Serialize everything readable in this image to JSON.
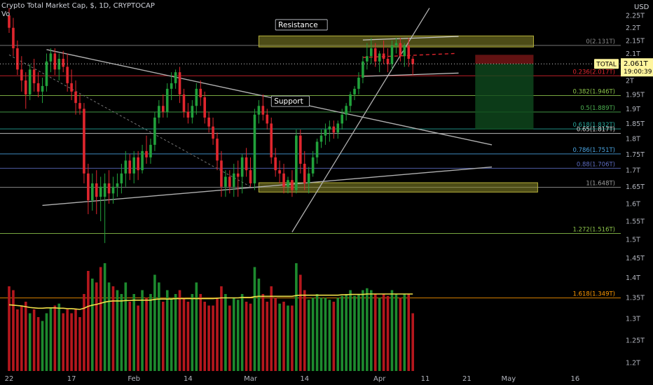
{
  "header": {
    "title": "Crypto Total Market Cap, $, 1D, CRYPTOCAP",
    "sub": "Vo"
  },
  "currency_label": "USD",
  "colors": {
    "up": "#21a13b",
    "down": "#e0262e",
    "up_vol": "#1d8a2e",
    "down_vol": "#b5171d",
    "ma_vol": "#f0e04a",
    "zone": "#8c8a2a",
    "trend": "#9e9e9e"
  },
  "chart_data": {
    "type": "candlestick",
    "title": "Crypto Total Market Cap, $, 1D, CRYPTOCAP",
    "y_axis": {
      "unit": "T USD",
      "scale": "log",
      "range": [
        1.19,
        2.28
      ],
      "ticks": [
        "2.25T",
        "2.2T",
        "2.15T",
        "2.1T",
        "2.05T",
        "2T",
        "1.95T",
        "1.9T",
        "1.85T",
        "1.8T",
        "1.75T",
        "1.7T",
        "1.65T",
        "1.6T",
        "1.55T",
        "1.5T",
        "1.45T",
        "1.4T",
        "1.35T",
        "1.3T",
        "1.25T",
        "1.2T"
      ],
      "tick_values": [
        2.25,
        2.2,
        2.15,
        2.1,
        2.05,
        2.0,
        1.95,
        1.9,
        1.85,
        1.8,
        1.75,
        1.7,
        1.65,
        1.6,
        1.55,
        1.5,
        1.45,
        1.4,
        1.35,
        1.3,
        1.25,
        1.2
      ]
    },
    "x_axis": {
      "labels": [
        "22",
        "17",
        "Feb",
        "14",
        "Mar",
        "14",
        "Apr",
        "11",
        "21",
        "May",
        "16"
      ],
      "label_days": [
        0,
        15,
        30,
        43,
        58,
        71,
        89,
        100,
        110,
        120,
        136
      ]
    },
    "price": {
      "last": "2.061T",
      "label": "TOTAL",
      "countdown": "19:00:39",
      "last_value": 2.061
    },
    "fib_levels": [
      {
        "label": "0(2.131T)",
        "value": 2.131,
        "color": "#8a8a8a"
      },
      {
        "label": "0.236(2.017T)",
        "value": 2.017,
        "color": "#e0262e"
      },
      {
        "label": "0.382(1.946T)",
        "value": 1.946,
        "color": "#8bc34a"
      },
      {
        "label": "0.5(1.889T)",
        "value": 1.889,
        "color": "#4caf50"
      },
      {
        "label": "0.618(1.832T)",
        "value": 1.832,
        "color": "#26a69a"
      },
      {
        "label": "0.65(1.817T)",
        "value": 1.817,
        "color": "#d8d8d8"
      },
      {
        "label": "0.786(1.751T)",
        "value": 1.751,
        "color": "#4aa3df"
      },
      {
        "label": "0.88(1.706T)",
        "value": 1.706,
        "color": "#5c6bc0"
      },
      {
        "label": "1(1.648T)",
        "value": 1.648,
        "color": "#9e9e9e"
      },
      {
        "label": "1.272(1.516T)",
        "value": 1.516,
        "color": "#8bc34a"
      },
      {
        "label": "1.618(1.349T)",
        "value": 1.349,
        "color": "#ff9800"
      }
    ],
    "annotations": [
      {
        "text": "Resistance",
        "x": 64,
        "y": 2.205
      },
      {
        "text": "Support",
        "x": 63,
        "y": 1.92
      }
    ],
    "zones": [
      {
        "name": "resistance",
        "x1": 60,
        "x2": 126,
        "y1": 2.125,
        "y2": 2.168
      },
      {
        "name": "support",
        "x1": 60,
        "x2": 127,
        "y1": 1.634,
        "y2": 1.662
      }
    ],
    "position": {
      "entry": 2.061,
      "stop": 2.095,
      "target": 1.83,
      "x1": 112,
      "x2": 126
    },
    "candles": [
      [
        2.25,
        2.28,
        2.18,
        2.2
      ],
      [
        2.2,
        2.24,
        2.09,
        2.12
      ],
      [
        2.12,
        2.15,
        2.02,
        2.04
      ],
      [
        2.04,
        2.09,
        1.96,
        2.0
      ],
      [
        2.0,
        2.03,
        1.9,
        1.95
      ],
      [
        1.95,
        2.06,
        1.93,
        2.04
      ],
      [
        2.04,
        2.08,
        1.96,
        1.99
      ],
      [
        1.99,
        2.03,
        1.94,
        1.96
      ],
      [
        1.96,
        2.01,
        1.92,
        1.98
      ],
      [
        1.98,
        2.1,
        1.96,
        2.07
      ],
      [
        2.07,
        2.12,
        2.03,
        2.1
      ],
      [
        2.1,
        2.12,
        2.02,
        2.04
      ],
      [
        2.04,
        2.1,
        2.0,
        2.08
      ],
      [
        2.08,
        2.11,
        2.03,
        2.05
      ],
      [
        2.05,
        2.1,
        1.96,
        1.99
      ],
      [
        1.99,
        2.04,
        1.93,
        1.96
      ],
      [
        1.96,
        2.0,
        1.88,
        1.92
      ],
      [
        1.92,
        1.95,
        1.88,
        1.9
      ],
      [
        1.9,
        1.92,
        1.66,
        1.69
      ],
      [
        1.69,
        1.72,
        1.57,
        1.61
      ],
      [
        1.61,
        1.69,
        1.58,
        1.66
      ],
      [
        1.66,
        1.7,
        1.57,
        1.62
      ],
      [
        1.62,
        1.68,
        1.55,
        1.65
      ],
      [
        1.62,
        1.69,
        1.49,
        1.66
      ],
      [
        1.66,
        1.7,
        1.6,
        1.63
      ],
      [
        1.63,
        1.68,
        1.6,
        1.65
      ],
      [
        1.65,
        1.69,
        1.62,
        1.66
      ],
      [
        1.66,
        1.72,
        1.63,
        1.69
      ],
      [
        1.69,
        1.76,
        1.65,
        1.73
      ],
      [
        1.73,
        1.75,
        1.67,
        1.69
      ],
      [
        1.69,
        1.76,
        1.66,
        1.74
      ],
      [
        1.74,
        1.76,
        1.67,
        1.7
      ],
      [
        1.7,
        1.78,
        1.69,
        1.76
      ],
      [
        1.76,
        1.81,
        1.72,
        1.74
      ],
      [
        1.74,
        1.8,
        1.72,
        1.78
      ],
      [
        1.78,
        1.89,
        1.76,
        1.87
      ],
      [
        1.87,
        1.93,
        1.85,
        1.91
      ],
      [
        1.91,
        1.95,
        1.87,
        1.89
      ],
      [
        1.89,
        1.99,
        1.87,
        1.97
      ],
      [
        1.97,
        2.03,
        1.93,
        1.99
      ],
      [
        1.99,
        2.04,
        1.97,
        2.03
      ],
      [
        2.03,
        2.05,
        1.92,
        1.95
      ],
      [
        1.95,
        1.97,
        1.87,
        1.89
      ],
      [
        1.89,
        1.92,
        1.85,
        1.87
      ],
      [
        1.87,
        1.93,
        1.85,
        1.91
      ],
      [
        1.91,
        1.99,
        1.88,
        1.97
      ],
      [
        1.97,
        2.0,
        1.91,
        1.94
      ],
      [
        1.94,
        1.96,
        1.85,
        1.87
      ],
      [
        1.87,
        1.89,
        1.82,
        1.84
      ],
      [
        1.84,
        1.87,
        1.78,
        1.8
      ],
      [
        1.8,
        1.82,
        1.7,
        1.73
      ],
      [
        1.73,
        1.76,
        1.62,
        1.65
      ],
      [
        1.65,
        1.7,
        1.62,
        1.68
      ],
      [
        1.68,
        1.7,
        1.63,
        1.65
      ],
      [
        1.65,
        1.72,
        1.62,
        1.69
      ],
      [
        1.69,
        1.73,
        1.62,
        1.68
      ],
      [
        1.68,
        1.75,
        1.63,
        1.74
      ],
      [
        1.74,
        1.77,
        1.68,
        1.7
      ],
      [
        1.7,
        1.74,
        1.65,
        1.66
      ],
      [
        1.66,
        1.9,
        1.64,
        1.88
      ],
      [
        1.88,
        1.93,
        1.85,
        1.91
      ],
      [
        1.91,
        1.95,
        1.86,
        1.88
      ],
      [
        1.88,
        1.9,
        1.83,
        1.85
      ],
      [
        1.85,
        1.87,
        1.72,
        1.74
      ],
      [
        1.74,
        1.77,
        1.68,
        1.7
      ],
      [
        1.7,
        1.73,
        1.66,
        1.69
      ],
      [
        1.69,
        1.72,
        1.63,
        1.65
      ],
      [
        1.65,
        1.68,
        1.63,
        1.67
      ],
      [
        1.67,
        1.7,
        1.62,
        1.64
      ],
      [
        1.64,
        1.83,
        1.63,
        1.81
      ],
      [
        1.81,
        1.83,
        1.69,
        1.72
      ],
      [
        1.72,
        1.76,
        1.64,
        1.66
      ],
      [
        1.66,
        1.71,
        1.63,
        1.69
      ],
      [
        1.69,
        1.76,
        1.68,
        1.74
      ],
      [
        1.74,
        1.8,
        1.72,
        1.79
      ],
      [
        1.79,
        1.83,
        1.77,
        1.81
      ],
      [
        1.81,
        1.85,
        1.78,
        1.83
      ],
      [
        1.83,
        1.86,
        1.79,
        1.84
      ],
      [
        1.84,
        1.86,
        1.8,
        1.82
      ],
      [
        1.82,
        1.86,
        1.8,
        1.85
      ],
      [
        1.85,
        1.9,
        1.83,
        1.88
      ],
      [
        1.88,
        1.92,
        1.86,
        1.91
      ],
      [
        1.91,
        1.96,
        1.89,
        1.95
      ],
      [
        1.95,
        1.98,
        1.93,
        1.97
      ],
      [
        1.97,
        2.03,
        1.95,
        2.01
      ],
      [
        2.01,
        2.09,
        1.99,
        2.07
      ],
      [
        2.07,
        2.14,
        2.04,
        2.09
      ],
      [
        2.09,
        2.16,
        2.06,
        2.12
      ],
      [
        2.12,
        2.14,
        2.05,
        2.07
      ],
      [
        2.07,
        2.11,
        2.03,
        2.1
      ],
      [
        2.1,
        2.15,
        2.06,
        2.08
      ],
      [
        2.08,
        2.12,
        2.03,
        2.06
      ],
      [
        2.06,
        2.15,
        2.04,
        2.13
      ],
      [
        2.13,
        2.16,
        2.1,
        2.14
      ],
      [
        2.14,
        2.16,
        2.07,
        2.09
      ],
      [
        2.09,
        2.14,
        2.05,
        2.13
      ],
      [
        2.13,
        2.16,
        2.05,
        2.08
      ],
      [
        2.08,
        2.09,
        2.02,
        2.06
      ]
    ],
    "volume": [
      [
        220,
        0
      ],
      [
        210,
        0
      ],
      [
        160,
        0
      ],
      [
        170,
        0
      ],
      [
        180,
        0
      ],
      [
        150,
        1
      ],
      [
        160,
        0
      ],
      [
        140,
        0
      ],
      [
        130,
        1
      ],
      [
        150,
        1
      ],
      [
        165,
        1
      ],
      [
        170,
        0
      ],
      [
        175,
        1
      ],
      [
        150,
        0
      ],
      [
        160,
        0
      ],
      [
        150,
        0
      ],
      [
        160,
        0
      ],
      [
        140,
        0
      ],
      [
        200,
        0
      ],
      [
        260,
        0
      ],
      [
        240,
        1
      ],
      [
        230,
        0
      ],
      [
        270,
        0
      ],
      [
        280,
        1
      ],
      [
        230,
        1
      ],
      [
        220,
        0
      ],
      [
        210,
        1
      ],
      [
        200,
        1
      ],
      [
        230,
        1
      ],
      [
        180,
        0
      ],
      [
        200,
        1
      ],
      [
        170,
        0
      ],
      [
        210,
        1
      ],
      [
        190,
        0
      ],
      [
        200,
        1
      ],
      [
        250,
        1
      ],
      [
        230,
        1
      ],
      [
        180,
        0
      ],
      [
        210,
        1
      ],
      [
        190,
        1
      ],
      [
        200,
        1
      ],
      [
        210,
        0
      ],
      [
        190,
        0
      ],
      [
        180,
        0
      ],
      [
        200,
        1
      ],
      [
        230,
        1
      ],
      [
        200,
        0
      ],
      [
        180,
        0
      ],
      [
        170,
        0
      ],
      [
        170,
        0
      ],
      [
        190,
        0
      ],
      [
        220,
        0
      ],
      [
        200,
        1
      ],
      [
        170,
        0
      ],
      [
        190,
        1
      ],
      [
        185,
        1
      ],
      [
        200,
        1
      ],
      [
        180,
        0
      ],
      [
        175,
        0
      ],
      [
        270,
        1
      ],
      [
        240,
        1
      ],
      [
        200,
        0
      ],
      [
        180,
        0
      ],
      [
        220,
        0
      ],
      [
        190,
        0
      ],
      [
        175,
        1
      ],
      [
        180,
        0
      ],
      [
        170,
        1
      ],
      [
        170,
        0
      ],
      [
        280,
        1
      ],
      [
        250,
        0
      ],
      [
        210,
        0
      ],
      [
        185,
        1
      ],
      [
        190,
        1
      ],
      [
        200,
        1
      ],
      [
        190,
        1
      ],
      [
        190,
        1
      ],
      [
        185,
        1
      ],
      [
        180,
        0
      ],
      [
        190,
        1
      ],
      [
        195,
        1
      ],
      [
        200,
        1
      ],
      [
        210,
        1
      ],
      [
        195,
        1
      ],
      [
        200,
        1
      ],
      [
        210,
        1
      ],
      [
        215,
        1
      ],
      [
        210,
        1
      ],
      [
        200,
        0
      ],
      [
        190,
        1
      ],
      [
        200,
        0
      ],
      [
        195,
        0
      ],
      [
        210,
        1
      ],
      [
        200,
        1
      ],
      [
        190,
        0
      ],
      [
        200,
        1
      ],
      [
        200,
        0
      ],
      [
        150,
        0
      ]
    ],
    "volume_ma": [
      172,
      171,
      170,
      169,
      167,
      165,
      164,
      163,
      163,
      164,
      164,
      164,
      163,
      163,
      162,
      162,
      161,
      160,
      163,
      168,
      171,
      173,
      176,
      179,
      181,
      182,
      182,
      182,
      183,
      183,
      184,
      184,
      184,
      184,
      184,
      186,
      187,
      187,
      187,
      187,
      188,
      188,
      188,
      188,
      188,
      188,
      188,
      188,
      188,
      188,
      189,
      190,
      190,
      190,
      190,
      190,
      191,
      191,
      191,
      193,
      194,
      194,
      194,
      194,
      194,
      194,
      194,
      194,
      194,
      196,
      197,
      197,
      197,
      197,
      197,
      197,
      197,
      197,
      197,
      197,
      198,
      198,
      199,
      199,
      199,
      199,
      200,
      200,
      200,
      200,
      200,
      200,
      200,
      200,
      200,
      200,
      200,
      200
    ]
  }
}
